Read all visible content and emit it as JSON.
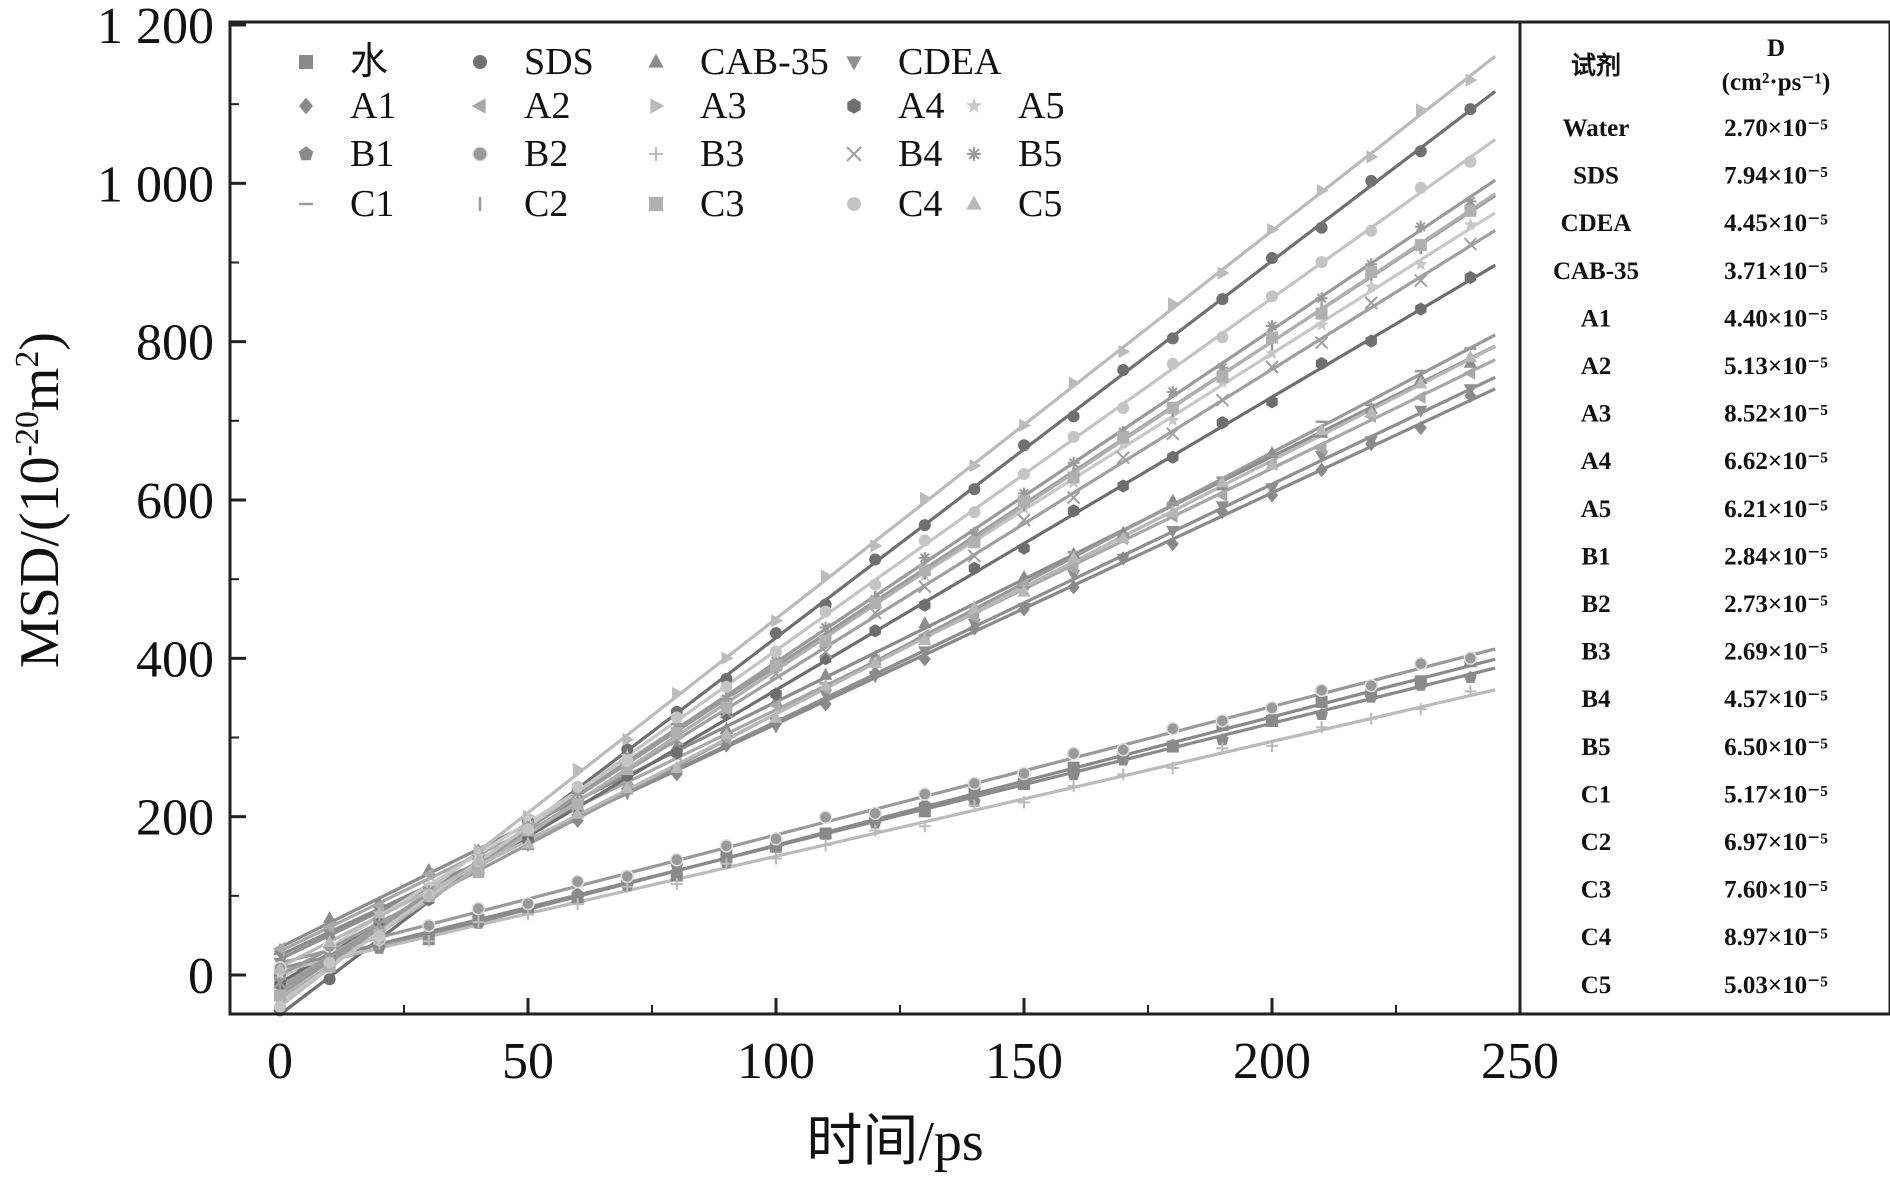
{
  "chart_data": {
    "type": "line",
    "xlabel": "时间/ps",
    "ylabel_main": "MSD/(10",
    "ylabel_sup1": "-20",
    "ylabel_mid": "m",
    "ylabel_sup2": "2",
    "ylabel_end": ")",
    "xlim": [
      -10,
      250
    ],
    "ylim": [
      -50,
      1200
    ],
    "xticks": [
      0,
      50,
      100,
      150,
      200,
      250
    ],
    "xtick_labels": [
      "0",
      "50",
      "100",
      "150",
      "200",
      "250"
    ],
    "yticks": [
      0,
      200,
      400,
      600,
      800,
      1000,
      1200
    ],
    "ytick_labels": [
      "0",
      "200",
      "400",
      "600",
      "800",
      "1 000",
      "1 200"
    ],
    "legend_position": "top-left",
    "series": [
      {
        "name": "水",
        "symbol": "square",
        "color": "#8a8a8a",
        "slope": 1.62,
        "intercept": 2
      },
      {
        "name": "SDS",
        "symbol": "circle",
        "color": "#707070",
        "slope": 4.76,
        "intercept": -50
      },
      {
        "name": "CAB-35",
        "symbol": "triangle-up",
        "color": "#8c8c8c",
        "slope": 3.1,
        "intercept": 35
      },
      {
        "name": "CDEA",
        "symbol": "triangle-down",
        "color": "#8f8f8f",
        "slope": 3.0,
        "intercept": 20
      },
      {
        "name": "A1",
        "symbol": "diamond",
        "color": "#8a8a8a",
        "slope": 2.92,
        "intercept": 25
      },
      {
        "name": "A2",
        "symbol": "triangle-left",
        "color": "#a8a8a8",
        "slope": 3.05,
        "intercept": 30
      },
      {
        "name": "A3",
        "symbol": "triangle-right",
        "color": "#bbbbbb",
        "slope": 4.9,
        "intercept": -40
      },
      {
        "name": "A4",
        "symbol": "hexagon",
        "color": "#6e6e6e",
        "slope": 3.7,
        "intercept": -10
      },
      {
        "name": "A5",
        "symbol": "star",
        "color": "#c8c8c8",
        "slope": 3.95,
        "intercept": -5
      },
      {
        "name": "B1",
        "symbol": "pentagon",
        "color": "#8a8a8a",
        "slope": 1.55,
        "intercept": 8
      },
      {
        "name": "B2",
        "symbol": "half-circle",
        "color": "#9a9a9a",
        "slope": 1.62,
        "intercept": 15
      },
      {
        "name": "B3",
        "symbol": "plus",
        "color": "#bbbbbb",
        "slope": 1.45,
        "intercept": 5
      },
      {
        "name": "B4",
        "symbol": "cross",
        "color": "#a0a0a0",
        "slope": 3.9,
        "intercept": -15
      },
      {
        "name": "B5",
        "symbol": "asterisk",
        "color": "#9a9a9a",
        "slope": 4.2,
        "intercept": -25
      },
      {
        "name": "C1",
        "symbol": "hline",
        "color": "#9a9a9a",
        "slope": 3.3,
        "intercept": 0
      },
      {
        "name": "C2",
        "symbol": "vline",
        "color": "#9a9a9a",
        "slope": 4.1,
        "intercept": -20
      },
      {
        "name": "C3",
        "symbol": "square",
        "color": "#b0b0b0",
        "slope": 4.15,
        "intercept": -30
      },
      {
        "name": "C4",
        "symbol": "circle",
        "color": "#c4c4c4",
        "slope": 4.45,
        "intercept": -35
      },
      {
        "name": "C5",
        "symbol": "triangle-up",
        "color": "#b8b8b8",
        "slope": 3.2,
        "intercept": 10
      }
    ]
  },
  "table": {
    "header_reagent": "试剂",
    "header_d": "D",
    "header_unit": "(cm²·ps⁻¹)",
    "rows": [
      {
        "reagent": "Water",
        "d": "2.70×10⁻⁵"
      },
      {
        "reagent": "SDS",
        "d": "7.94×10⁻⁵"
      },
      {
        "reagent": "CDEA",
        "d": "4.45×10⁻⁵"
      },
      {
        "reagent": "CAB-35",
        "d": "3.71×10⁻⁵"
      },
      {
        "reagent": "A1",
        "d": "4.40×10⁻⁵"
      },
      {
        "reagent": "A2",
        "d": "5.13×10⁻⁵"
      },
      {
        "reagent": "A3",
        "d": "8.52×10⁻⁵"
      },
      {
        "reagent": "A4",
        "d": "6.62×10⁻⁵"
      },
      {
        "reagent": "A5",
        "d": "6.21×10⁻⁵"
      },
      {
        "reagent": "B1",
        "d": "2.84×10⁻⁵"
      },
      {
        "reagent": "B2",
        "d": "2.73×10⁻⁵"
      },
      {
        "reagent": "B3",
        "d": "2.69×10⁻⁵"
      },
      {
        "reagent": "B4",
        "d": "4.57×10⁻⁵"
      },
      {
        "reagent": "B5",
        "d": "6.50×10⁻⁵"
      },
      {
        "reagent": "C1",
        "d": "5.17×10⁻⁵"
      },
      {
        "reagent": "C2",
        "d": "6.97×10⁻⁵"
      },
      {
        "reagent": "C3",
        "d": "7.60×10⁻⁵"
      },
      {
        "reagent": "C4",
        "d": "8.97×10⁻⁵"
      },
      {
        "reagent": "C5",
        "d": "5.03×10⁻⁵"
      }
    ]
  }
}
